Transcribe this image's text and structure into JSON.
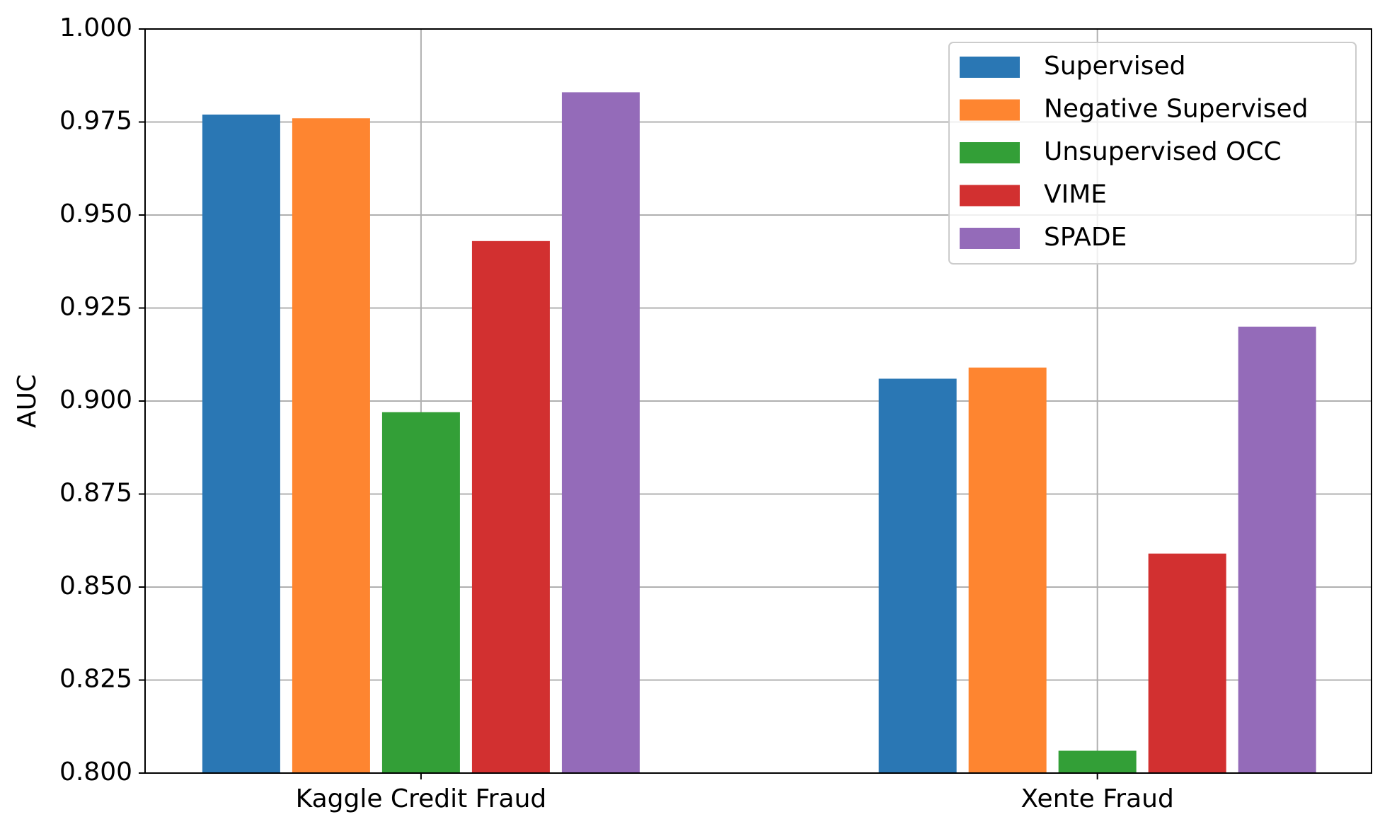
{
  "chart_data": {
    "type": "bar",
    "y_label": "AUC",
    "categories": [
      "Kaggle Credit Fraud",
      "Xente Fraud"
    ],
    "series": [
      {
        "name": "Supervised",
        "color": "#2a77b4",
        "values": [
          0.977,
          0.906
        ]
      },
      {
        "name": "Negative Supervised",
        "color": "#fe8530",
        "values": [
          0.976,
          0.909
        ]
      },
      {
        "name": "Unsupervised OCC",
        "color": "#339f37",
        "values": [
          0.897,
          0.806
        ]
      },
      {
        "name": "VIME",
        "color": "#d23030",
        "values": [
          0.943,
          0.859
        ]
      },
      {
        "name": "SPADE",
        "color": "#946bb9",
        "values": [
          0.983,
          0.92
        ]
      }
    ],
    "ylim": [
      0.8,
      1.0
    ],
    "yticks": [
      {
        "value": 0.8,
        "label": "0.800"
      },
      0.825,
      {
        "value": 0.85,
        "label": "0.850"
      },
      0.875,
      {
        "value": 0.9,
        "label": "0.900"
      },
      0.925,
      {
        "value": 0.95,
        "label": "0.950"
      },
      0.975,
      {
        "value": 1.0,
        "label": "1.000"
      }
    ],
    "grid": true,
    "legend": "upper right"
  }
}
